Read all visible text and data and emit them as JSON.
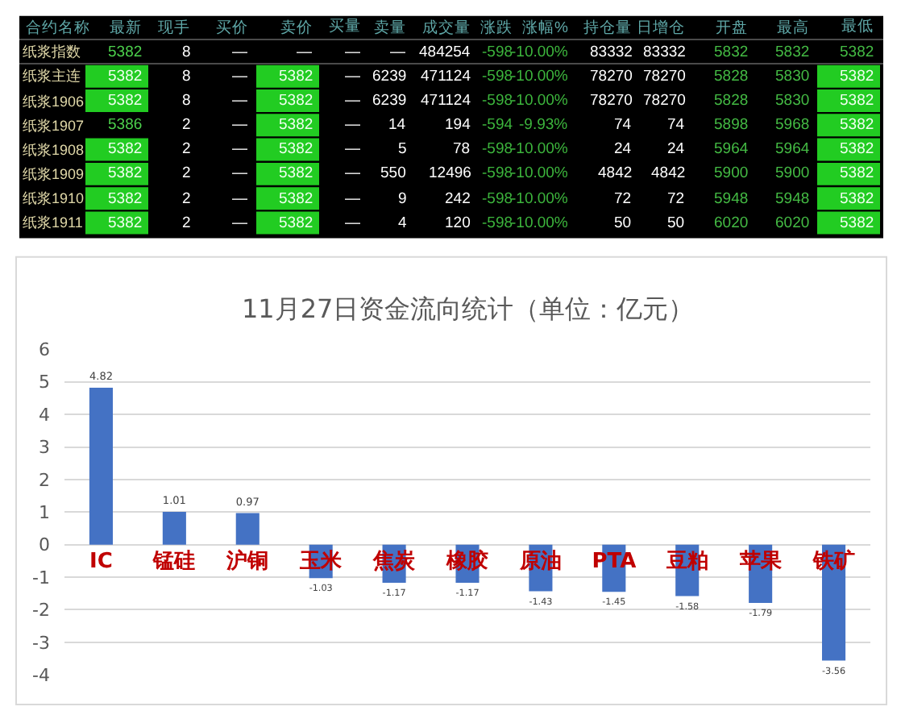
{
  "chart_data": [
    {
      "type": "other",
      "ylabel": "合约名称",
      "categories": [
        "最新",
        "现手",
        "买价",
        "卖价",
        "买量",
        "卖量",
        "成交量",
        "涨跌",
        "涨幅%",
        "持仓量",
        "日增仓",
        "开盘",
        "最高",
        "最低"
      ],
      "y_categories": [
        "纸浆指数",
        "纸浆主连",
        "纸浆1906",
        "纸浆1907",
        "纸浆1908",
        "纸浆1909",
        "纸浆1910",
        "纸浆1911"
      ],
      "cell_labels": [
        [
          "5382",
          "8",
          "—",
          "—",
          "—",
          "—",
          "484254",
          "-598",
          "-10.00%",
          "83332",
          "83332",
          "5832",
          "5832",
          "5382"
        ],
        [
          "5382",
          "8",
          "—",
          "5382",
          "—",
          "6239",
          "471124",
          "-598",
          "-10.00%",
          "78270",
          "78270",
          "5828",
          "5830",
          "5382"
        ],
        [
          "5382",
          "8",
          "—",
          "5382",
          "—",
          "6239",
          "471124",
          "-598",
          "-10.00%",
          "78270",
          "78270",
          "5828",
          "5830",
          "5382"
        ],
        [
          "5386",
          "2",
          "—",
          "5382",
          "—",
          "14",
          "194",
          "-594",
          "-9.93%",
          "74",
          "74",
          "5898",
          "5968",
          "5382"
        ],
        [
          "5382",
          "2",
          "—",
          "5382",
          "—",
          "5",
          "78",
          "-598",
          "-10.00%",
          "24",
          "24",
          "5964",
          "5964",
          "5382"
        ],
        [
          "5382",
          "2",
          "—",
          "5382",
          "—",
          "550",
          "12496",
          "-598",
          "-10.00%",
          "4842",
          "4842",
          "5900",
          "5900",
          "5382"
        ],
        [
          "5382",
          "2",
          "—",
          "5382",
          "—",
          "9",
          "242",
          "-598",
          "-10.00%",
          "72",
          "72",
          "5948",
          "5948",
          "5382"
        ],
        [
          "5382",
          "2",
          "—",
          "5382",
          "—",
          "4",
          "120",
          "-598",
          "-10.00%",
          "50",
          "50",
          "6020",
          "6020",
          "5382"
        ]
      ],
      "colors": [
        [
          "#000000",
          "#000000",
          "#000000",
          "#000000",
          "#000000",
          "#000000",
          "#000000",
          "#000000",
          "#000000",
          "#000000",
          "#000000",
          "#000000",
          "#000000",
          "#000000"
        ],
        [
          "#22cc22",
          "#000000",
          "#000000",
          "#22cc22",
          "#000000",
          "#000000",
          "#000000",
          "#000000",
          "#000000",
          "#000000",
          "#000000",
          "#000000",
          "#000000",
          "#22cc22"
        ],
        [
          "#22cc22",
          "#000000",
          "#000000",
          "#22cc22",
          "#000000",
          "#000000",
          "#000000",
          "#000000",
          "#000000",
          "#000000",
          "#000000",
          "#000000",
          "#000000",
          "#22cc22"
        ],
        [
          "#000000",
          "#000000",
          "#000000",
          "#22cc22",
          "#000000",
          "#000000",
          "#000000",
          "#000000",
          "#000000",
          "#000000",
          "#000000",
          "#000000",
          "#000000",
          "#22cc22"
        ],
        [
          "#22cc22",
          "#000000",
          "#000000",
          "#22cc22",
          "#000000",
          "#000000",
          "#000000",
          "#000000",
          "#000000",
          "#000000",
          "#000000",
          "#000000",
          "#000000",
          "#22cc22"
        ],
        [
          "#22cc22",
          "#000000",
          "#000000",
          "#22cc22",
          "#000000",
          "#000000",
          "#000000",
          "#000000",
          "#000000",
          "#000000",
          "#000000",
          "#000000",
          "#000000",
          "#22cc22"
        ],
        [
          "#22cc22",
          "#000000",
          "#000000",
          "#22cc22",
          "#000000",
          "#000000",
          "#000000",
          "#000000",
          "#000000",
          "#000000",
          "#000000",
          "#000000",
          "#000000",
          "#22cc22"
        ],
        [
          "#22cc22",
          "#000000",
          "#000000",
          "#22cc22",
          "#000000",
          "#000000",
          "#000000",
          "#000000",
          "#000000",
          "#000000",
          "#000000",
          "#000000",
          "#000000",
          "#22cc22"
        ]
      ]
    },
    {
      "type": "bar",
      "title": "11月27日资金流向统计（单位：亿元）",
      "categories": [
        "IC",
        "锰硅",
        "沪铜",
        "玉米",
        "焦炭",
        "橡胶",
        "原油",
        "PTA",
        "豆粕",
        "苹果",
        "铁矿"
      ],
      "values": [
        4.82,
        1.01,
        0.97,
        -1.03,
        -1.17,
        -1.17,
        -1.43,
        -1.45,
        -1.58,
        -1.79,
        -3.56
      ],
      "color": "#4472c4",
      "data_labels": true,
      "grid": "y",
      "ylim": [
        -4,
        6
      ],
      "yticks": [
        -4,
        -3,
        -2,
        -1,
        0,
        1,
        2,
        3,
        4,
        5,
        6
      ]
    }
  ]
}
